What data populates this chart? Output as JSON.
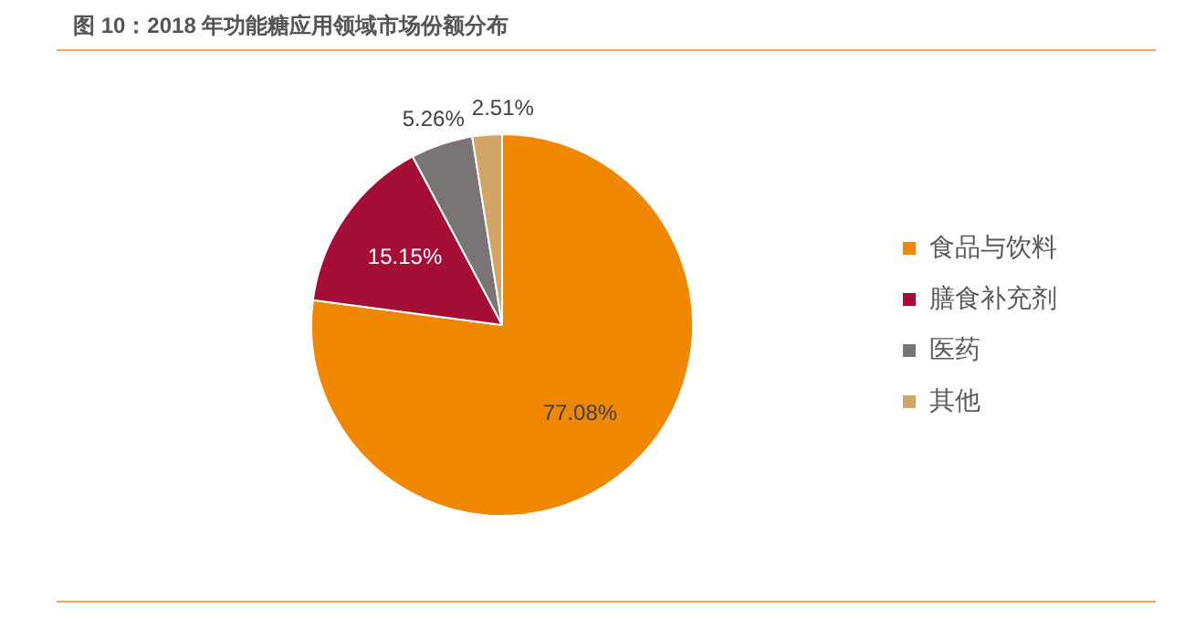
{
  "chart_data": {
    "type": "pie",
    "title": "图 10：2018 年功能糖应用领域市场份额分布",
    "categories": [
      "食品与饮料",
      "膳食补充剂",
      "医药",
      "其他"
    ],
    "values": [
      77.08,
      15.15,
      5.26,
      2.51
    ],
    "colors": [
      "#f08700",
      "#a50f37",
      "#7a7474",
      "#d1a468"
    ],
    "value_labels": [
      "77.08%",
      "15.15%",
      "5.26%",
      "2.51%"
    ],
    "legend": "right"
  }
}
